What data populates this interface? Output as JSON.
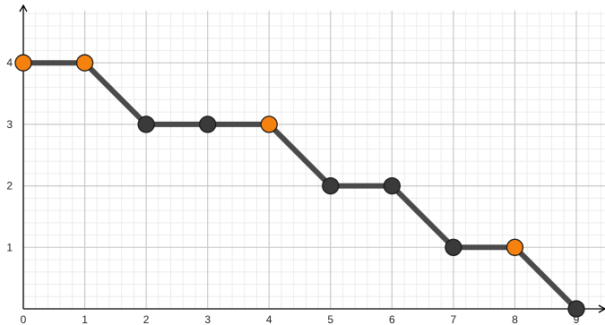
{
  "chart_data": {
    "type": "line",
    "title": "",
    "xlabel": "",
    "ylabel": "",
    "xlim": [
      0,
      9
    ],
    "ylim": [
      0,
      4.8
    ],
    "x_ticks": [
      "0",
      "1",
      "2",
      "3",
      "4",
      "5",
      "6",
      "7",
      "8",
      "9"
    ],
    "y_ticks": [
      "1",
      "2",
      "3",
      "4"
    ],
    "grid": true,
    "minor_grid": true,
    "legend": "none",
    "series": [
      {
        "points": [
          {
            "x": 0,
            "y": 4,
            "highlight": true
          },
          {
            "x": 1,
            "y": 4,
            "highlight": true
          },
          {
            "x": 2,
            "y": 3,
            "highlight": false
          },
          {
            "x": 3,
            "y": 3,
            "highlight": false
          },
          {
            "x": 4,
            "y": 3,
            "highlight": true
          },
          {
            "x": 5,
            "y": 2,
            "highlight": false
          },
          {
            "x": 6,
            "y": 2,
            "highlight": false
          },
          {
            "x": 7,
            "y": 1,
            "highlight": false
          },
          {
            "x": 8,
            "y": 1,
            "highlight": true
          },
          {
            "x": 9,
            "y": 0,
            "highlight": false
          }
        ]
      }
    ],
    "colors": {
      "line": "#4a4a4a",
      "point": "#3a3a3a",
      "point_highlight": "#f5820f",
      "point_stroke": "#1a1a1a",
      "major_grid": "#c8c8c8",
      "minor_grid": "#ececec",
      "axis": "#000000"
    }
  }
}
